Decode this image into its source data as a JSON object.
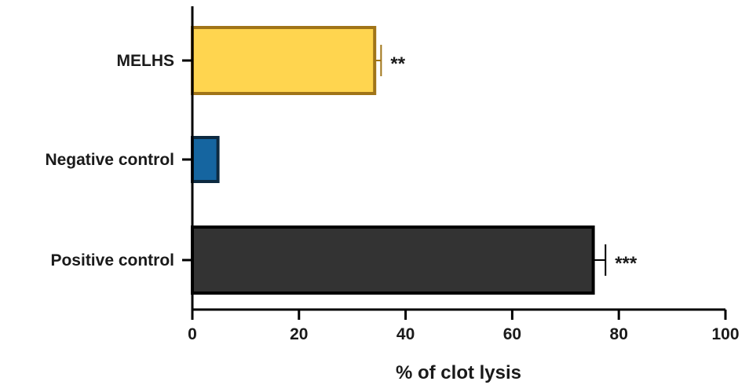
{
  "chart_data": {
    "type": "bar",
    "orientation": "horizontal",
    "categories": [
      "MELHS",
      "Negative control",
      "Positive control"
    ],
    "values": [
      34.2,
      4.8,
      75.2
    ],
    "errors": [
      1.2,
      0,
      2.3
    ],
    "significance": [
      "**",
      "",
      "***"
    ],
    "colors": [
      "#FFD54F",
      "#1565A0",
      "#333333"
    ],
    "edge_colors": [
      "#A07418",
      "#0D2A40",
      "#000000"
    ],
    "xlabel": "% of clot lysis",
    "ylabel": "",
    "title": "",
    "xlim": [
      0,
      100
    ],
    "xticks": [
      "0",
      "20",
      "40",
      "60",
      "80",
      "100"
    ],
    "grid": false,
    "legend": "none"
  }
}
